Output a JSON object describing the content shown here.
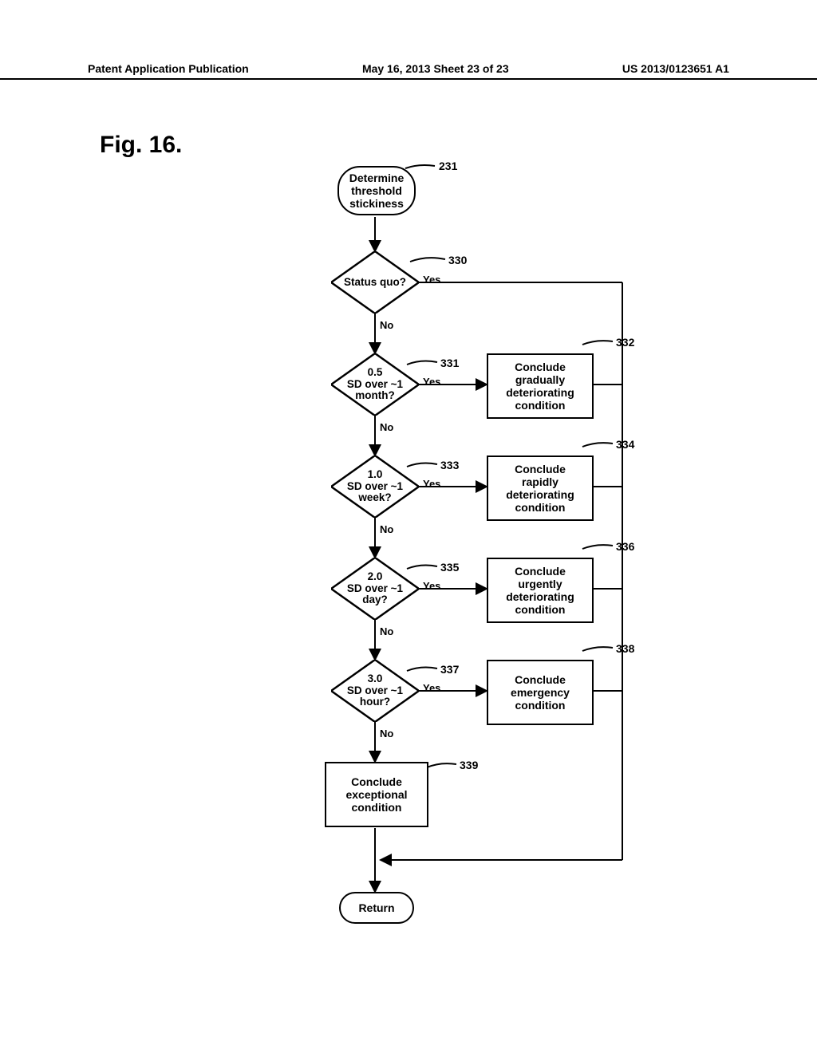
{
  "header": {
    "left": "Patent Application Publication",
    "center": "May 16, 2013  Sheet 23 of 23",
    "right": "US 2013/0123651 A1"
  },
  "figure_title": "Fig. 16.",
  "nodes": {
    "start": {
      "text": "Determine\nthreshold\nstickiness",
      "ref": "231"
    },
    "d1": {
      "text": "Status quo?",
      "ref": "330"
    },
    "d2": {
      "text": "0.5\nSD over ~1\nmonth?",
      "ref": "331"
    },
    "d3": {
      "text": "1.0\nSD over ~1\nweek?",
      "ref": "333"
    },
    "d4": {
      "text": "2.0\nSD over ~1\nday?",
      "ref": "335"
    },
    "d5": {
      "text": "3.0\nSD over ~1\nhour?",
      "ref": "337"
    },
    "p1": {
      "text": "Conclude\ngradually\ndeteriorating\ncondition",
      "ref": "332"
    },
    "p2": {
      "text": "Conclude\nrapidly\ndeteriorating\ncondition",
      "ref": "334"
    },
    "p3": {
      "text": "Conclude\nurgently\ndeteriorating\ncondition",
      "ref": "336"
    },
    "p4": {
      "text": "Conclude\nemergency\ncondition",
      "ref": "338"
    },
    "p5": {
      "text": "Conclude\nexceptional\ncondition",
      "ref": "339"
    },
    "return": {
      "text": "Return"
    }
  },
  "labels": {
    "yes": "Yes",
    "no": "No"
  },
  "style": {
    "stroke": "#000000",
    "stroke_width": 2.5,
    "font": "Arial",
    "background": "#ffffff"
  },
  "layout": {
    "centerX": 140,
    "rightColX": 280,
    "busX": 450,
    "diamond_w": 110,
    "diamond_h": 78,
    "proc_w": 130,
    "proc_h": 78
  }
}
